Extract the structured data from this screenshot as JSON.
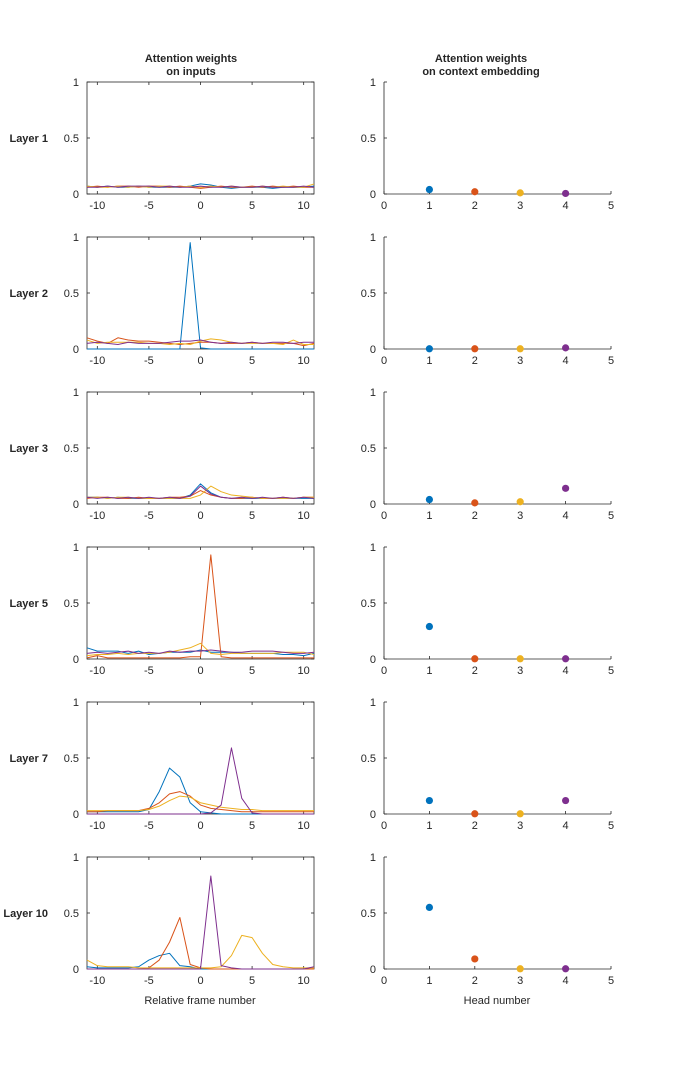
{
  "figure": {
    "left_title_line1": "Attention weights",
    "left_title_line2": "on inputs",
    "right_title_line1": "Attention weights",
    "right_title_line2": "on context embedding",
    "left_xlabel": "Relative frame number",
    "right_xlabel": "Head number"
  },
  "colors": {
    "head1": "#0072BD",
    "head2": "#D95319",
    "head3": "#EDB120",
    "head4": "#7E2F8E"
  },
  "chart_data": [
    {
      "panel": "left",
      "row_label": "Layer 1",
      "type": "line",
      "xlim": [
        -11,
        11
      ],
      "ylim": [
        0,
        1
      ],
      "xticks": [
        -10,
        -5,
        0,
        5,
        10
      ],
      "yticks": [
        0,
        0.5,
        1
      ],
      "x": [
        -11,
        -10,
        -9,
        -8,
        -7,
        -6,
        -5,
        -4,
        -3,
        -2,
        -1,
        0,
        1,
        2,
        3,
        4,
        5,
        6,
        7,
        8,
        9,
        10,
        11
      ],
      "series": [
        {
          "values": [
            0.07,
            0.06,
            0.07,
            0.06,
            0.06,
            0.07,
            0.06,
            0.06,
            0.06,
            0.06,
            0.07,
            0.09,
            0.08,
            0.06,
            0.05,
            0.06,
            0.06,
            0.06,
            0.05,
            0.06,
            0.06,
            0.06,
            0.07
          ]
        },
        {
          "values": [
            0.06,
            0.07,
            0.06,
            0.07,
            0.07,
            0.06,
            0.07,
            0.07,
            0.06,
            0.07,
            0.06,
            0.05,
            0.06,
            0.07,
            0.06,
            0.06,
            0.07,
            0.06,
            0.07,
            0.06,
            0.07,
            0.06,
            0.06
          ]
        },
        {
          "values": [
            0.07,
            0.06,
            0.06,
            0.07,
            0.06,
            0.07,
            0.06,
            0.07,
            0.07,
            0.06,
            0.07,
            0.06,
            0.07,
            0.06,
            0.07,
            0.06,
            0.06,
            0.07,
            0.06,
            0.07,
            0.06,
            0.06,
            0.09
          ]
        },
        {
          "values": [
            0.06,
            0.06,
            0.07,
            0.06,
            0.07,
            0.07,
            0.07,
            0.06,
            0.07,
            0.06,
            0.06,
            0.07,
            0.06,
            0.06,
            0.07,
            0.06,
            0.06,
            0.07,
            0.06,
            0.06,
            0.06,
            0.07,
            0.06
          ]
        }
      ]
    },
    {
      "panel": "right",
      "row_label": "Layer 1",
      "type": "scatter",
      "xlim": [
        0,
        5
      ],
      "ylim": [
        0,
        1
      ],
      "xticks": [
        0,
        1,
        2,
        3,
        4,
        5
      ],
      "yticks": [
        0,
        0.5,
        1
      ],
      "x": [
        1,
        2,
        3,
        4
      ],
      "values": [
        0.04,
        0.02,
        0.01,
        0.005
      ]
    },
    {
      "panel": "left",
      "row_label": "Layer 2",
      "type": "line",
      "xlim": [
        -11,
        11
      ],
      "ylim": [
        0,
        1
      ],
      "xticks": [
        -10,
        -5,
        0,
        5,
        10
      ],
      "yticks": [
        0,
        0.5,
        1
      ],
      "x": [
        -11,
        -10,
        -9,
        -8,
        -7,
        -6,
        -5,
        -4,
        -3,
        -2,
        -1,
        0,
        1,
        2,
        3,
        4,
        5,
        6,
        7,
        8,
        9,
        10,
        11
      ],
      "series": [
        {
          "values": [
            0.0,
            0.0,
            0.0,
            0.0,
            0.0,
            0.0,
            0.0,
            0.0,
            0.0,
            0.0,
            0.95,
            0.01,
            0.0,
            0.0,
            0.0,
            0.0,
            0.0,
            0.0,
            0.0,
            0.0,
            0.0,
            0.0,
            0.0
          ]
        },
        {
          "values": [
            0.1,
            0.07,
            0.05,
            0.1,
            0.08,
            0.07,
            0.07,
            0.06,
            0.05,
            0.04,
            0.05,
            0.06,
            0.06,
            0.05,
            0.05,
            0.05,
            0.06,
            0.05,
            0.05,
            0.05,
            0.05,
            0.03,
            0.05
          ]
        },
        {
          "values": [
            0.08,
            0.05,
            0.06,
            0.06,
            0.06,
            0.06,
            0.05,
            0.05,
            0.04,
            0.05,
            0.04,
            0.07,
            0.09,
            0.08,
            0.06,
            0.05,
            0.05,
            0.05,
            0.05,
            0.04,
            0.08,
            0.04,
            0.04
          ]
        },
        {
          "values": [
            0.05,
            0.06,
            0.05,
            0.04,
            0.06,
            0.05,
            0.05,
            0.05,
            0.06,
            0.07,
            0.07,
            0.08,
            0.06,
            0.05,
            0.06,
            0.05,
            0.06,
            0.05,
            0.06,
            0.06,
            0.05,
            0.06,
            0.06
          ]
        }
      ]
    },
    {
      "panel": "right",
      "row_label": "Layer 2",
      "type": "scatter",
      "xlim": [
        0,
        5
      ],
      "ylim": [
        0,
        1
      ],
      "xticks": [
        0,
        1,
        2,
        3,
        4,
        5
      ],
      "yticks": [
        0,
        0.5,
        1
      ],
      "x": [
        1,
        2,
        3,
        4
      ],
      "values": [
        0.002,
        0.002,
        0.002,
        0.01
      ]
    },
    {
      "panel": "left",
      "row_label": "Layer 3",
      "type": "line",
      "xlim": [
        -11,
        11
      ],
      "ylim": [
        0,
        1
      ],
      "xticks": [
        -10,
        -5,
        0,
        5,
        10
      ],
      "yticks": [
        0,
        0.5,
        1
      ],
      "x": [
        -11,
        -10,
        -9,
        -8,
        -7,
        -6,
        -5,
        -4,
        -3,
        -2,
        -1,
        0,
        1,
        2,
        3,
        4,
        5,
        6,
        7,
        8,
        9,
        10,
        11
      ],
      "series": [
        {
          "values": [
            0.06,
            0.06,
            0.05,
            0.06,
            0.05,
            0.05,
            0.05,
            0.05,
            0.05,
            0.05,
            0.08,
            0.18,
            0.1,
            0.06,
            0.05,
            0.05,
            0.05,
            0.05,
            0.05,
            0.05,
            0.05,
            0.05,
            0.05
          ]
        },
        {
          "values": [
            0.05,
            0.06,
            0.06,
            0.05,
            0.05,
            0.06,
            0.05,
            0.05,
            0.06,
            0.06,
            0.07,
            0.12,
            0.08,
            0.06,
            0.05,
            0.05,
            0.06,
            0.05,
            0.05,
            0.06,
            0.05,
            0.06,
            0.06
          ]
        },
        {
          "values": [
            0.06,
            0.06,
            0.05,
            0.06,
            0.06,
            0.05,
            0.05,
            0.05,
            0.05,
            0.05,
            0.05,
            0.08,
            0.16,
            0.11,
            0.08,
            0.07,
            0.06,
            0.05,
            0.05,
            0.05,
            0.05,
            0.06,
            0.06
          ]
        },
        {
          "values": [
            0.06,
            0.05,
            0.06,
            0.05,
            0.06,
            0.05,
            0.06,
            0.05,
            0.06,
            0.05,
            0.07,
            0.16,
            0.09,
            0.06,
            0.05,
            0.06,
            0.05,
            0.06,
            0.05,
            0.06,
            0.05,
            0.06,
            0.05
          ]
        }
      ]
    },
    {
      "panel": "right",
      "row_label": "Layer 3",
      "type": "scatter",
      "xlim": [
        0,
        5
      ],
      "ylim": [
        0,
        1
      ],
      "xticks": [
        0,
        1,
        2,
        3,
        4,
        5
      ],
      "yticks": [
        0,
        0.5,
        1
      ],
      "x": [
        1,
        2,
        3,
        4
      ],
      "values": [
        0.04,
        0.01,
        0.02,
        0.14
      ]
    },
    {
      "panel": "left",
      "row_label": "Layer 5",
      "type": "line",
      "xlim": [
        -11,
        11
      ],
      "ylim": [
        0,
        1
      ],
      "xticks": [
        -10,
        -5,
        0,
        5,
        10
      ],
      "yticks": [
        0,
        0.5,
        1
      ],
      "x": [
        -11,
        -10,
        -9,
        -8,
        -7,
        -6,
        -5,
        -4,
        -3,
        -2,
        -1,
        0,
        1,
        2,
        3,
        4,
        5,
        6,
        7,
        8,
        9,
        10,
        11
      ],
      "series": [
        {
          "values": [
            0.1,
            0.07,
            0.07,
            0.07,
            0.05,
            0.07,
            0.04,
            0.05,
            0.06,
            0.06,
            0.06,
            0.08,
            0.06,
            0.06,
            0.06,
            0.05,
            0.05,
            0.05,
            0.05,
            0.04,
            0.04,
            0.03,
            0.05
          ]
        },
        {
          "values": [
            0.01,
            0.03,
            0.01,
            0.01,
            0.01,
            0.01,
            0.01,
            0.01,
            0.01,
            0.01,
            0.02,
            0.02,
            0.93,
            0.02,
            0.01,
            0.01,
            0.01,
            0.01,
            0.01,
            0.01,
            0.01,
            0.01,
            0.01
          ]
        },
        {
          "values": [
            0.03,
            0.04,
            0.04,
            0.05,
            0.04,
            0.05,
            0.05,
            0.05,
            0.06,
            0.08,
            0.1,
            0.14,
            0.05,
            0.04,
            0.05,
            0.05,
            0.05,
            0.05,
            0.05,
            0.06,
            0.06,
            0.06,
            0.04
          ]
        },
        {
          "values": [
            0.05,
            0.06,
            0.05,
            0.06,
            0.07,
            0.05,
            0.06,
            0.05,
            0.07,
            0.06,
            0.07,
            0.07,
            0.08,
            0.07,
            0.06,
            0.06,
            0.07,
            0.07,
            0.07,
            0.06,
            0.05,
            0.05,
            0.06
          ]
        }
      ]
    },
    {
      "panel": "right",
      "row_label": "Layer 5",
      "type": "scatter",
      "xlim": [
        0,
        5
      ],
      "ylim": [
        0,
        1
      ],
      "xticks": [
        0,
        1,
        2,
        3,
        4,
        5
      ],
      "yticks": [
        0,
        0.5,
        1
      ],
      "x": [
        1,
        2,
        3,
        4
      ],
      "values": [
        0.29,
        0.002,
        0.002,
        0.002
      ]
    },
    {
      "panel": "left",
      "row_label": "Layer 7",
      "type": "line",
      "xlim": [
        -11,
        11
      ],
      "ylim": [
        0,
        1
      ],
      "xticks": [
        -10,
        -5,
        0,
        5,
        10
      ],
      "yticks": [
        0,
        0.5,
        1
      ],
      "x": [
        -11,
        -10,
        -9,
        -8,
        -7,
        -6,
        -5,
        -4,
        -3,
        -2,
        -1,
        0,
        1,
        2,
        3,
        4,
        5,
        6,
        7,
        8,
        9,
        10,
        11
      ],
      "series": [
        {
          "values": [
            0.02,
            0.02,
            0.02,
            0.02,
            0.02,
            0.02,
            0.04,
            0.2,
            0.41,
            0.33,
            0.1,
            0.02,
            0.01,
            0.0,
            0.0,
            0.0,
            0.0,
            0.0,
            0.0,
            0.0,
            0.0,
            0.0,
            0.0
          ]
        },
        {
          "values": [
            0.02,
            0.02,
            0.03,
            0.03,
            0.03,
            0.03,
            0.05,
            0.1,
            0.18,
            0.2,
            0.16,
            0.08,
            0.05,
            0.04,
            0.03,
            0.02,
            0.02,
            0.02,
            0.02,
            0.02,
            0.02,
            0.02,
            0.02
          ]
        },
        {
          "values": [
            0.03,
            0.03,
            0.03,
            0.03,
            0.03,
            0.03,
            0.04,
            0.07,
            0.12,
            0.16,
            0.15,
            0.1,
            0.08,
            0.06,
            0.05,
            0.04,
            0.04,
            0.03,
            0.03,
            0.03,
            0.03,
            0.03,
            0.03
          ]
        },
        {
          "values": [
            0.0,
            0.0,
            0.0,
            0.0,
            0.0,
            0.0,
            0.0,
            0.0,
            0.0,
            0.0,
            0.0,
            0.0,
            0.01,
            0.08,
            0.59,
            0.14,
            0.01,
            0.0,
            0.0,
            0.0,
            0.0,
            0.0,
            0.0
          ]
        }
      ]
    },
    {
      "panel": "right",
      "row_label": "Layer 7",
      "type": "scatter",
      "xlim": [
        0,
        5
      ],
      "ylim": [
        0,
        1
      ],
      "xticks": [
        0,
        1,
        2,
        3,
        4,
        5
      ],
      "yticks": [
        0,
        0.5,
        1
      ],
      "x": [
        1,
        2,
        3,
        4
      ],
      "values": [
        0.12,
        0.002,
        0.002,
        0.12
      ]
    },
    {
      "panel": "left",
      "row_label": "Layer 10",
      "type": "line",
      "xlim": [
        -11,
        11
      ],
      "ylim": [
        0,
        1
      ],
      "xticks": [
        -10,
        -5,
        0,
        5,
        10
      ],
      "yticks": [
        0,
        0.5,
        1
      ],
      "x": [
        -11,
        -10,
        -9,
        -8,
        -7,
        -6,
        -5,
        -4,
        -3,
        -2,
        -1,
        0,
        1,
        2,
        3,
        4,
        5,
        6,
        7,
        8,
        9,
        10,
        11
      ],
      "series": [
        {
          "values": [
            0.02,
            0.01,
            0.01,
            0.01,
            0.01,
            0.02,
            0.08,
            0.12,
            0.14,
            0.03,
            0.02,
            0.0,
            0.0,
            0.0,
            0.0,
            0.0,
            0.0,
            0.0,
            0.0,
            0.0,
            0.0,
            0.0,
            0.0
          ]
        },
        {
          "values": [
            0.0,
            0.0,
            0.0,
            0.0,
            0.0,
            0.0,
            0.01,
            0.08,
            0.24,
            0.46,
            0.04,
            0.01,
            0.0,
            0.0,
            0.0,
            0.0,
            0.0,
            0.0,
            0.0,
            0.0,
            0.0,
            0.0,
            0.0
          ]
        },
        {
          "values": [
            0.08,
            0.03,
            0.02,
            0.02,
            0.02,
            0.01,
            0.01,
            0.01,
            0.01,
            0.01,
            0.01,
            0.01,
            0.01,
            0.02,
            0.12,
            0.3,
            0.28,
            0.14,
            0.04,
            0.02,
            0.01,
            0.01,
            0.01
          ]
        },
        {
          "values": [
            0.0,
            0.0,
            0.0,
            0.0,
            0.0,
            0.0,
            0.0,
            0.0,
            0.0,
            0.0,
            0.0,
            0.0,
            0.83,
            0.03,
            0.01,
            0.0,
            0.0,
            0.0,
            0.0,
            0.0,
            0.0,
            0.0,
            0.02
          ]
        }
      ]
    },
    {
      "panel": "right",
      "row_label": "Layer 10",
      "type": "scatter",
      "xlim": [
        0,
        5
      ],
      "ylim": [
        0,
        1
      ],
      "xticks": [
        0,
        1,
        2,
        3,
        4,
        5
      ],
      "yticks": [
        0,
        0.5,
        1
      ],
      "x": [
        1,
        2,
        3,
        4
      ],
      "values": [
        0.55,
        0.09,
        0.002,
        0.002
      ]
    }
  ]
}
